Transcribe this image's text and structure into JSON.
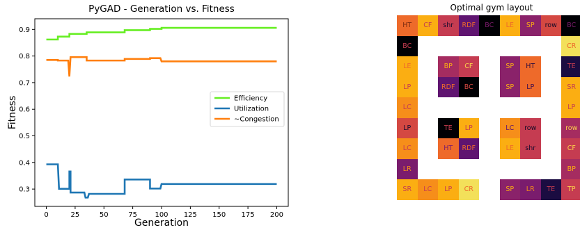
{
  "chart_data": [
    {
      "type": "line",
      "title": "PyGAD - Generation vs. Fitness",
      "xlabel": "Generation",
      "ylabel": "Fitness",
      "xlim": [
        -10,
        210
      ],
      "ylim": [
        0.235,
        0.94
      ],
      "xticks": [
        0,
        25,
        50,
        75,
        100,
        125,
        150,
        175,
        200
      ],
      "yticks": [
        0.3,
        0.4,
        0.5,
        0.6,
        0.7,
        0.8,
        0.9
      ],
      "grid": false,
      "legend_position": "center-right",
      "series": [
        {
          "name": "Efficiency",
          "color": "#66ee22",
          "x": [
            0,
            10,
            10,
            15,
            15,
            20,
            20,
            35,
            35,
            68,
            68,
            90,
            90,
            100,
            100,
            200
          ],
          "y": [
            0.862,
            0.862,
            0.873,
            0.873,
            0.873,
            0.873,
            0.883,
            0.883,
            0.889,
            0.889,
            0.897,
            0.897,
            0.902,
            0.902,
            0.906,
            0.906
          ]
        },
        {
          "name": "Utilization",
          "color": "#1f77b4",
          "x": [
            0,
            10,
            11,
            20,
            20,
            21,
            21,
            33,
            34,
            36,
            37,
            68,
            68,
            90,
            90,
            99,
            100,
            200
          ],
          "y": [
            0.393,
            0.393,
            0.301,
            0.301,
            0.366,
            0.366,
            0.287,
            0.287,
            0.268,
            0.268,
            0.282,
            0.282,
            0.336,
            0.336,
            0.302,
            0.302,
            0.319,
            0.319
          ]
        },
        {
          "name": "~Congestion",
          "color": "#ff7f0e",
          "x": [
            0,
            10,
            10,
            19,
            20,
            21,
            21,
            35,
            35,
            68,
            68,
            90,
            90,
            99,
            100,
            200
          ],
          "y": [
            0.785,
            0.785,
            0.783,
            0.783,
            0.723,
            0.796,
            0.796,
            0.796,
            0.783,
            0.783,
            0.789,
            0.789,
            0.792,
            0.792,
            0.78,
            0.78
          ]
        }
      ]
    },
    {
      "type": "heatmap",
      "title": "Optimal gym layout",
      "cells": [
        {
          "r": 0,
          "c": 0,
          "label": "HT",
          "bg": "#ee6a2a",
          "fg": "#7a2a10"
        },
        {
          "r": 0,
          "c": 1,
          "label": "CF",
          "bg": "#fbae12",
          "fg": "#c13a50"
        },
        {
          "r": 0,
          "c": 2,
          "label": "shr",
          "bg": "#c53c51",
          "fg": "#1a0b2e"
        },
        {
          "r": 0,
          "c": 3,
          "label": "RDF",
          "bg": "#5f1470",
          "fg": "#ee6a2a"
        },
        {
          "r": 0,
          "c": 4,
          "label": "BC",
          "bg": "#000004",
          "fg": "#7a1c6d"
        },
        {
          "r": 0,
          "c": 5,
          "label": "LE",
          "bg": "#fbae12",
          "fg": "#ee6a2a"
        },
        {
          "r": 0,
          "c": 6,
          "label": "SP",
          "bg": "#8a226a",
          "fg": "#fbae12"
        },
        {
          "r": 0,
          "c": 7,
          "label": "row",
          "bg": "#d44842",
          "fg": "#120a26"
        },
        {
          "r": 0,
          "c": 8,
          "label": "BC",
          "bg": "#000004",
          "fg": "#7a1c6d"
        },
        {
          "r": 1,
          "c": 0,
          "label": "BC",
          "bg": "#000004",
          "fg": "#c53c51"
        },
        {
          "r": 1,
          "c": 8,
          "label": "CR",
          "bg": "#f3e05a",
          "fg": "#ee6a2a"
        },
        {
          "r": 2,
          "c": 0,
          "label": "LE",
          "bg": "#fbae12",
          "fg": "#ee6a2a"
        },
        {
          "r": 2,
          "c": 2,
          "label": "BP",
          "bg": "#a52c60",
          "fg": "#fbae12"
        },
        {
          "r": 2,
          "c": 3,
          "label": "CF",
          "bg": "#c53c51",
          "fg": "#fbd24a"
        },
        {
          "r": 2,
          "c": 5,
          "label": "SP",
          "bg": "#8a226a",
          "fg": "#fbae12"
        },
        {
          "r": 2,
          "c": 6,
          "label": "HT",
          "bg": "#ee6a2a",
          "fg": "#2a0b3e"
        },
        {
          "r": 2,
          "c": 8,
          "label": "TE",
          "bg": "#1b0c41",
          "fg": "#c53c51"
        },
        {
          "r": 3,
          "c": 0,
          "label": "LP",
          "bg": "#fbae12",
          "fg": "#c53c51"
        },
        {
          "r": 3,
          "c": 2,
          "label": "RDF",
          "bg": "#5f1470",
          "fg": "#ee6a2a"
        },
        {
          "r": 3,
          "c": 3,
          "label": "BC",
          "bg": "#000004",
          "fg": "#d44842"
        },
        {
          "r": 3,
          "c": 5,
          "label": "SP",
          "bg": "#8a226a",
          "fg": "#fbae12"
        },
        {
          "r": 3,
          "c": 6,
          "label": "LP",
          "bg": "#ee6a2a",
          "fg": "#3a0b4e"
        },
        {
          "r": 3,
          "c": 8,
          "label": "SR",
          "bg": "#fbae12",
          "fg": "#c53c51"
        },
        {
          "r": 4,
          "c": 0,
          "label": "LC",
          "bg": "#f68e1a",
          "fg": "#c53c51"
        },
        {
          "r": 4,
          "c": 8,
          "label": "LP",
          "bg": "#fbae12",
          "fg": "#c53c51"
        },
        {
          "r": 5,
          "c": 0,
          "label": "LP",
          "bg": "#d44842",
          "fg": "#1a0b2e"
        },
        {
          "r": 5,
          "c": 2,
          "label": "TE",
          "bg": "#000004",
          "fg": "#c53c51"
        },
        {
          "r": 5,
          "c": 3,
          "label": "LP",
          "bg": "#fbae12",
          "fg": "#c53c51"
        },
        {
          "r": 5,
          "c": 5,
          "label": "LC",
          "bg": "#f68e1a",
          "fg": "#5f1470"
        },
        {
          "r": 5,
          "c": 6,
          "label": "row",
          "bg": "#c53c51",
          "fg": "#120a26"
        },
        {
          "r": 5,
          "c": 8,
          "label": "row",
          "bg": "#a52c60",
          "fg": "#fbd24a"
        },
        {
          "r": 6,
          "c": 0,
          "label": "LC",
          "bg": "#f68e1a",
          "fg": "#c53c51"
        },
        {
          "r": 6,
          "c": 2,
          "label": "HT",
          "bg": "#ee6a2a",
          "fg": "#7a1c6d"
        },
        {
          "r": 6,
          "c": 3,
          "label": "RDF",
          "bg": "#5f1470",
          "fg": "#ee6a2a"
        },
        {
          "r": 6,
          "c": 5,
          "label": "LE",
          "bg": "#fbae12",
          "fg": "#ee6a2a"
        },
        {
          "r": 6,
          "c": 6,
          "label": "shr",
          "bg": "#c53c51",
          "fg": "#1a0b2e"
        },
        {
          "r": 6,
          "c": 8,
          "label": "CF",
          "bg": "#c53c51",
          "fg": "#fbd24a"
        },
        {
          "r": 7,
          "c": 0,
          "label": "LR",
          "bg": "#7a1c6d",
          "fg": "#f68e1a"
        },
        {
          "r": 7,
          "c": 8,
          "label": "BP",
          "bg": "#a52c60",
          "fg": "#fbae12"
        },
        {
          "r": 8,
          "c": 0,
          "label": "SR",
          "bg": "#fbae12",
          "fg": "#c53c51"
        },
        {
          "r": 8,
          "c": 1,
          "label": "LC",
          "bg": "#f68e1a",
          "fg": "#c53c51"
        },
        {
          "r": 8,
          "c": 2,
          "label": "LP",
          "bg": "#fbae12",
          "fg": "#c53c51"
        },
        {
          "r": 8,
          "c": 3,
          "label": "CR",
          "bg": "#f3e05a",
          "fg": "#ee6a2a"
        },
        {
          "r": 8,
          "c": 5,
          "label": "SP",
          "bg": "#8a226a",
          "fg": "#fbae12"
        },
        {
          "r": 8,
          "c": 6,
          "label": "LR",
          "bg": "#7a1c6d",
          "fg": "#f68e1a"
        },
        {
          "r": 8,
          "c": 7,
          "label": "TE",
          "bg": "#1b0c41",
          "fg": "#c53c51"
        },
        {
          "r": 8,
          "c": 8,
          "label": "TP",
          "bg": "#c53c51",
          "fg": "#fbd24a"
        }
      ]
    }
  ]
}
